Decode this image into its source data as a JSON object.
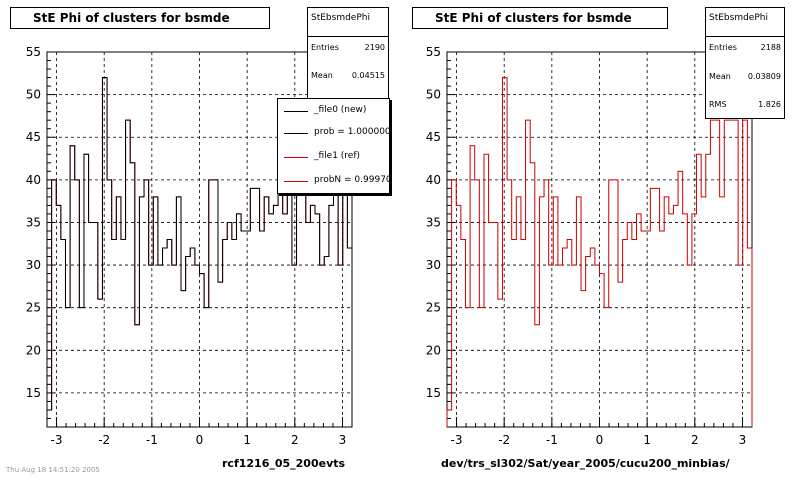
{
  "chart_data": [
    {
      "type": "histogram",
      "title": "StE Phi of clusters for bsmde",
      "xlabel": "rcf1216_05_200evts",
      "xlim": [
        -3.2,
        3.2
      ],
      "ylim": [
        11,
        55
      ],
      "xticks": [
        -3,
        -2,
        -1,
        0,
        1,
        2,
        3
      ],
      "yticks": [
        15,
        20,
        25,
        30,
        35,
        40,
        45,
        50,
        55
      ],
      "grid": true,
      "stats": {
        "name": "StEbsmdePhi",
        "entries": "2190",
        "mean": "0.04515",
        "rms": ""
      },
      "legend": {
        "placement": "top-right",
        "entries": [
          {
            "label": "_file0 (new)",
            "color": "#000000"
          },
          {
            "label": "prob = 1.000000",
            "color": "#000000"
          },
          {
            "label": "_file1 (ref)",
            "color": "#cc0000"
          },
          {
            "label": "probN = 0.99970",
            "color": "#cc0000"
          }
        ]
      },
      "series": [
        {
          "name": "_file1 (ref)",
          "color": "#cc0000",
          "values": [
            13,
            40,
            37,
            33,
            25,
            44,
            40,
            25,
            43,
            35,
            35,
            26,
            52,
            40,
            33,
            38,
            33,
            47,
            42,
            23,
            38,
            40,
            30,
            38,
            30,
            32,
            33,
            30,
            38,
            27,
            31,
            32,
            30,
            29,
            25,
            40,
            40,
            28,
            33,
            35,
            33,
            36,
            34,
            34,
            39,
            39,
            34,
            38,
            36,
            37,
            41,
            36,
            40,
            30,
            39,
            43,
            35,
            37,
            36,
            30,
            31,
            37,
            41,
            30,
            40,
            32
          ]
        },
        {
          "name": "_file0 (new)",
          "color": "#000000",
          "values": [
            13,
            40,
            37,
            33,
            25,
            44,
            40,
            25,
            43,
            35,
            35,
            26,
            52,
            40,
            33,
            38,
            33,
            47,
            42,
            23,
            38,
            40,
            30,
            38,
            30,
            32,
            33,
            30,
            38,
            27,
            31,
            32,
            30,
            29,
            25,
            40,
            40,
            28,
            33,
            35,
            33,
            36,
            34,
            34,
            39,
            39,
            34,
            38,
            36,
            37,
            41,
            36,
            40,
            30,
            39,
            43,
            35,
            37,
            36,
            30,
            31,
            37,
            41,
            30,
            40,
            32
          ]
        }
      ]
    },
    {
      "type": "histogram",
      "title": "StE Phi of clusters for bsmde",
      "xlabel": "dev/trs_sl302/Sat/year_2005/cucu200_minbias/",
      "xlim": [
        -3.2,
        3.2
      ],
      "ylim": [
        11,
        55
      ],
      "xticks": [
        -3,
        -2,
        -1,
        0,
        1,
        2,
        3
      ],
      "yticks": [
        15,
        20,
        25,
        30,
        35,
        40,
        45,
        50,
        55
      ],
      "grid": true,
      "stats": {
        "name": "StEbsmdePhi",
        "entries": "2188",
        "mean": "0.03809",
        "rms": "1.826"
      },
      "legend": null,
      "series": [
        {
          "name": "",
          "color": "#cc0000",
          "values": [
            13,
            40,
            37,
            33,
            25,
            44,
            40,
            25,
            43,
            35,
            35,
            26,
            52,
            40,
            33,
            38,
            33,
            47,
            42,
            23,
            38,
            40,
            30,
            38,
            30,
            32,
            33,
            30,
            38,
            27,
            31,
            32,
            30,
            29,
            25,
            40,
            40,
            28,
            33,
            35,
            33,
            36,
            34,
            34,
            39,
            39,
            34,
            38,
            36,
            37,
            41,
            36,
            30,
            36,
            43,
            38,
            43,
            47,
            47,
            38,
            47,
            47,
            47,
            30,
            47,
            32
          ]
        }
      ]
    }
  ],
  "footer": {
    "date": "Thu Aug 18 14:51:20 2005"
  },
  "stat_labels": {
    "entries": "Entries",
    "mean": "Mean",
    "rms": "RMS"
  }
}
